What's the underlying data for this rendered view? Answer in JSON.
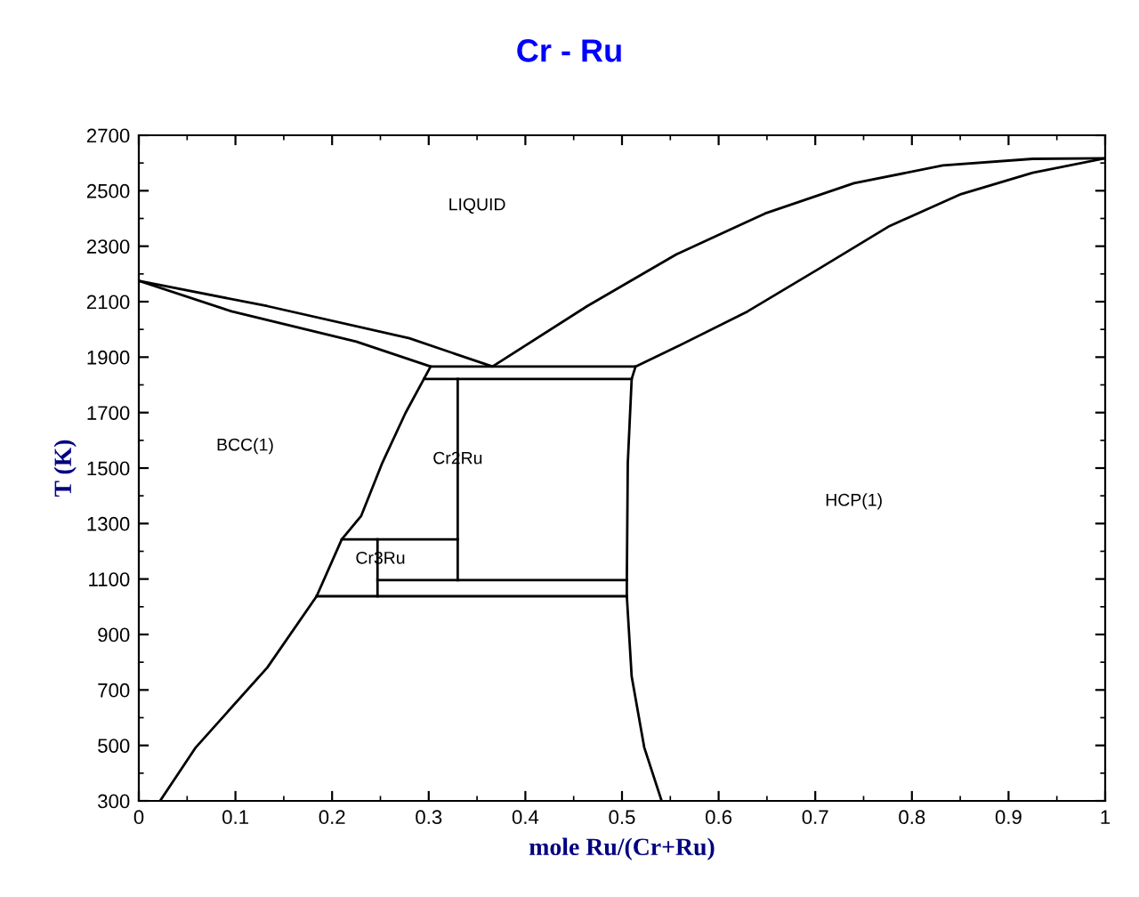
{
  "chart_data": {
    "type": "line",
    "title": "Cr - Ru",
    "xlabel": "mole Ru/(Cr+Ru)",
    "ylabel": "T (K)",
    "xlim": [
      0,
      1
    ],
    "ylim": [
      300,
      2700
    ],
    "xticks": [
      0,
      0.1,
      0.2,
      0.3,
      0.4,
      0.5,
      0.6,
      0.7,
      0.8,
      0.9,
      1
    ],
    "yticks": [
      300,
      500,
      700,
      900,
      1100,
      1300,
      1500,
      1700,
      1900,
      2100,
      2300,
      2500,
      2700
    ],
    "grid": false,
    "marker": "none",
    "line_style": "solid",
    "series": [
      {
        "color": "#000000",
        "x": [
          0,
          0.133,
          0.28,
          0.366,
          0.464,
          0.556,
          0.648,
          0.74,
          0.832,
          0.925,
          1
        ],
        "values": [
          2175,
          2084,
          1968,
          1866,
          2084,
          2270,
          2418,
          2527,
          2591,
          2615,
          2617
        ]
      },
      {
        "color": "#000000",
        "x": [
          0,
          0.096,
          0.225,
          0.302,
          0.514,
          0.556,
          0.63,
          0.704,
          0.777,
          0.851,
          0.925,
          1
        ],
        "values": [
          2175,
          2065,
          1956,
          1866,
          1866,
          1936,
          2065,
          2219,
          2373,
          2488,
          2565,
          2617
        ]
      },
      {
        "color": "#000000",
        "x": [
          0.302,
          0.295,
          0.276,
          0.252,
          0.23,
          0.21,
          0.184,
          0.133,
          0.059,
          0.022
        ],
        "values": [
          1866,
          1821,
          1699,
          1519,
          1327,
          1243,
          1038,
          781,
          493,
          300
        ]
      },
      {
        "color": "#000000",
        "x": [
          0.514,
          0.51,
          0.506,
          0.505,
          0.505,
          0.51,
          0.523,
          0.541
        ],
        "values": [
          1866,
          1821,
          1519,
          1096,
          1038,
          749,
          493,
          300
        ]
      },
      {
        "color": "#000000",
        "x": [
          0.295,
          0.51
        ],
        "values": [
          1821,
          1821
        ]
      },
      {
        "color": "#000000",
        "x": [
          0.21,
          0.33
        ],
        "values": [
          1243,
          1243
        ]
      },
      {
        "color": "#000000",
        "x": [
          0.247,
          0.505
        ],
        "values": [
          1096,
          1096
        ]
      },
      {
        "color": "#000000",
        "x": [
          0.184,
          0.505
        ],
        "values": [
          1038,
          1038
        ]
      },
      {
        "color": "#000000",
        "x": [
          0.33,
          0.33
        ],
        "values": [
          1821,
          1096
        ]
      },
      {
        "color": "#000000",
        "x": [
          0.247,
          0.247
        ],
        "values": [
          1243,
          1038
        ]
      }
    ],
    "annotations": [
      "LIQUID",
      "BCC(1)",
      "Cr2Ru",
      "Cr3Ru",
      "HCP(1)"
    ]
  }
}
